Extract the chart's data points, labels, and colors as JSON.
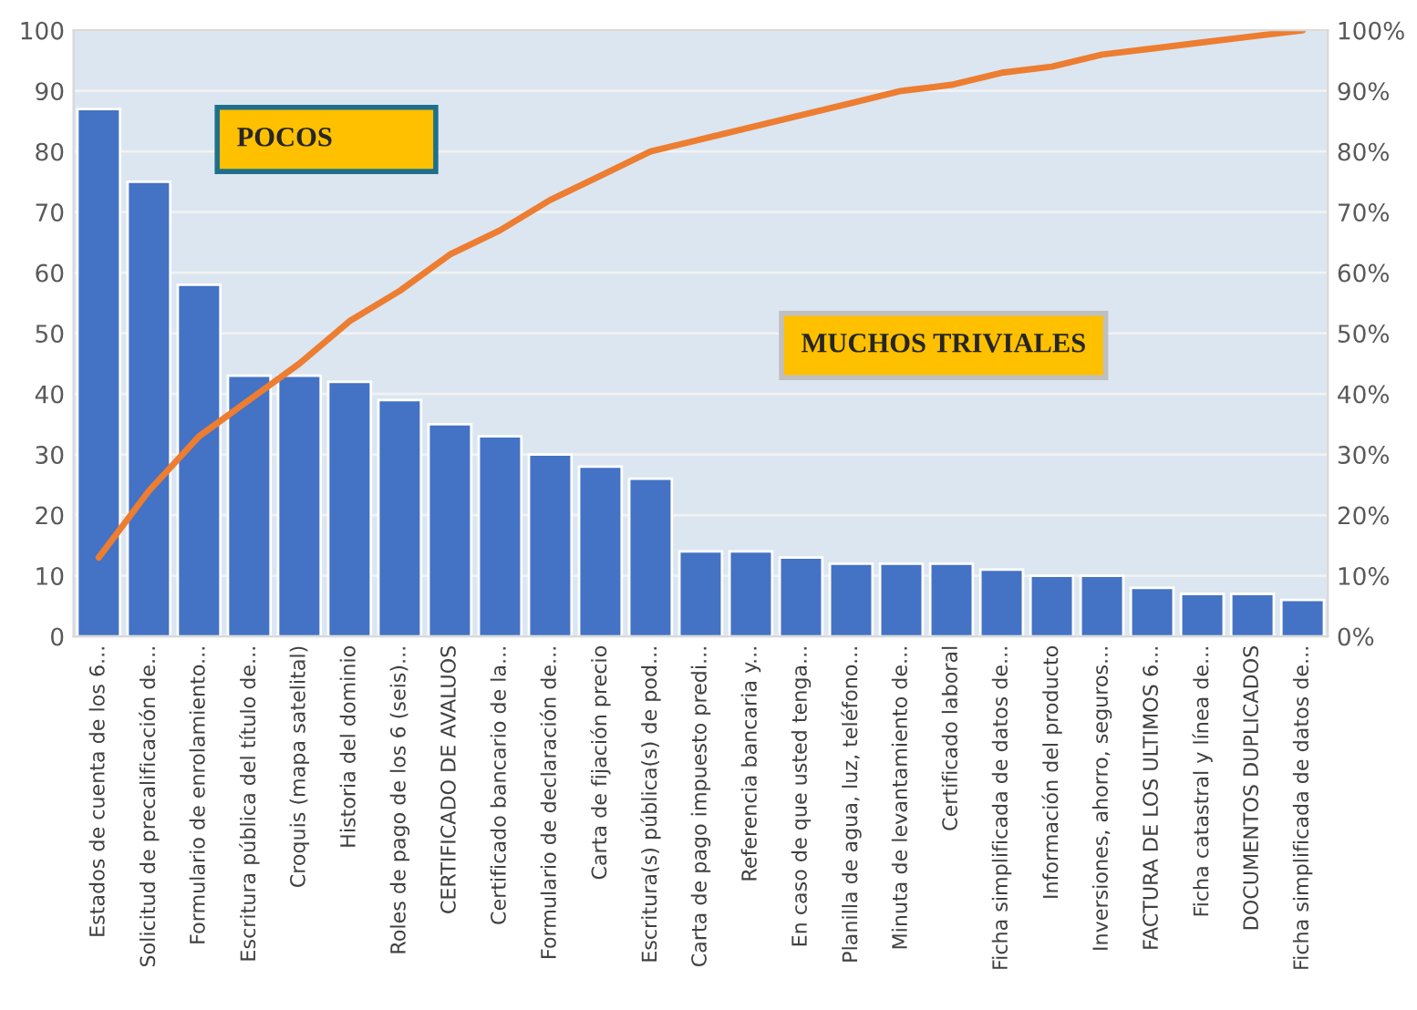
{
  "chart_data": {
    "type": "bar",
    "categories": [
      "Estados de cuenta de los 6...",
      "Solicitud de precalificación de...",
      "Formulario de enrolamiento...",
      "Escritura pública del título de...",
      "Croquis (mapa satelital)",
      "Historia del dominio",
      "Roles de pago de los 6 (seis)...",
      "CERTIFICADO DE AVALUOS",
      "Certificado bancario de la...",
      "Formulario de declaración de...",
      "Carta de fijación precio",
      "Escritura(s) pública(s) de pod...",
      "Carta de pago impuesto predi...",
      "Referencia bancaria y...",
      "En caso de que usted tenga...",
      "Planilla de agua, luz, teléfono...",
      "Minuta de levantamiento de...",
      "Certificado laboral",
      "Ficha simplificada de datos de...",
      "Información del producto",
      "Inversiones, ahorro, seguros...",
      "FACTURA DE LOS ULTIMOS 6...",
      "Ficha catastral y línea de...",
      "DOCUMENTOS DUPLICADOS",
      "Ficha simplificada de datos de..."
    ],
    "series": [
      {
        "color": "#4472c4",
        "values": [
          87,
          75,
          58,
          43,
          43,
          42,
          39,
          35,
          33,
          30,
          28,
          26,
          14,
          14,
          13,
          12,
          12,
          12,
          11,
          10,
          10,
          8,
          7,
          7,
          6
        ]
      },
      {
        "type": "line",
        "axis": "y2",
        "color": "#ed7d31",
        "values": [
          13,
          24,
          33,
          39,
          45,
          52,
          57,
          63,
          67,
          72,
          76,
          80,
          82,
          84,
          86,
          88,
          90,
          91,
          93,
          94,
          96,
          97,
          98,
          99,
          100
        ]
      }
    ],
    "ylim": [
      0,
      100
    ],
    "yticks": [
      0,
      10,
      20,
      30,
      40,
      50,
      60,
      70,
      80,
      90,
      100
    ],
    "y2lim": [
      0,
      100
    ],
    "y2ticks": [
      {
        "value": 0,
        "label": "0%"
      },
      {
        "value": 10,
        "label": "10%"
      },
      {
        "value": 20,
        "label": "20%"
      },
      {
        "value": 30,
        "label": "30%"
      },
      {
        "value": 40,
        "label": "40%"
      },
      {
        "value": 50,
        "label": "50%"
      },
      {
        "value": 60,
        "label": "60%"
      },
      {
        "value": 70,
        "label": "70%"
      },
      {
        "value": 80,
        "label": "80%"
      },
      {
        "value": 90,
        "label": "90%"
      },
      {
        "value": 100,
        "label": "100%"
      }
    ],
    "annotations": [
      "POCOS",
      "MUCHOS TRIVIALES"
    ],
    "grid": "y",
    "line_style": "solid"
  }
}
